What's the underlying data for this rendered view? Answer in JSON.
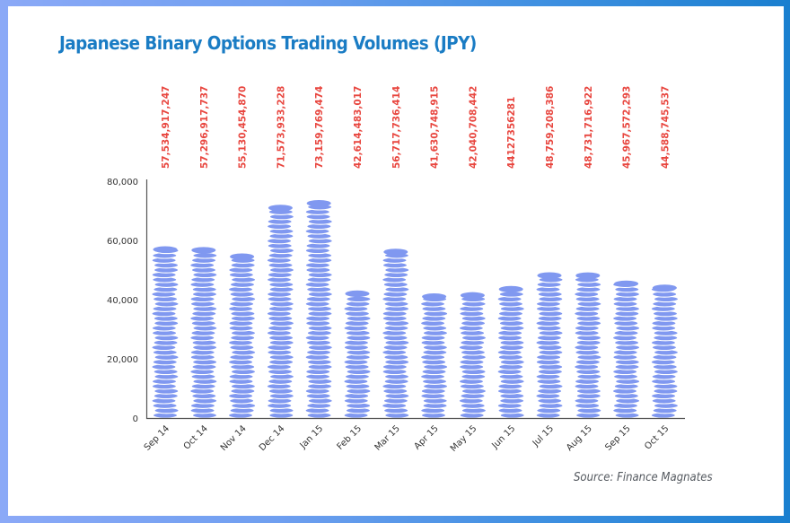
{
  "title": "Japanese Binary Options Trading Volumes (JPY)",
  "source": "Source: Finance Magnates",
  "colors": {
    "title": "#1a7cc4",
    "value_label": "#e8463f",
    "coin_fill": "#8098f0",
    "coin_line": "#ffffff",
    "axis": "#555555"
  },
  "chart_data": {
    "type": "bar",
    "bar_style": "coin-stack-pictogram",
    "title": "Japanese Binary Options Trading Volumes (JPY)",
    "xlabel": "",
    "ylabel": "",
    "ylim": [
      0,
      80000
    ],
    "y_ticks": [
      0,
      20000,
      40000,
      60000,
      80000
    ],
    "y_tick_labels": [
      "0",
      "20,000",
      "40,000",
      "60,000",
      "80,000"
    ],
    "y_scale_divisor": 1000000,
    "categories": [
      "Sep 14",
      "Oct 14",
      "Nov 14",
      "Dec 14",
      "Jan 15",
      "Feb 15",
      "Mar 15",
      "Apr 15",
      "May 15",
      "Jun 15",
      "Jul 15",
      "Aug 15",
      "Sep 15",
      "Oct 15"
    ],
    "values": [
      57534917247,
      57296917737,
      55130454870,
      71573933228,
      73159769474,
      42614483017,
      56717736414,
      41630748915,
      42040708442,
      44127356281,
      48759208386,
      48731716922,
      45967572293,
      44588745537
    ],
    "value_labels": [
      "57,534,917,247",
      "57,296,917,737",
      "55,130,454,870",
      "71,573,933,228",
      "73,159,769,474",
      "42,614,483,017",
      "56,717,736,414",
      "41,630,748,915",
      "42,040,708,442",
      "44127356281",
      "48,759,208,386",
      "48,731,716,922",
      "45,967,572,293",
      "44,588,745,537"
    ],
    "grid": false,
    "legend": "none"
  }
}
